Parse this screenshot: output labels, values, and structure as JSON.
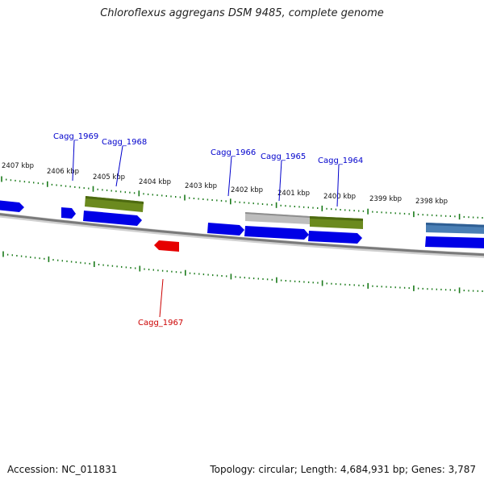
{
  "title": "Chloroflexus aggregans DSM 9485, complete genome",
  "footer": {
    "accession": "Accession: NC_011831",
    "summary": "Topology: circular; Length: 4,684,931 bp; Genes: 3,787"
  },
  "colors": {
    "forward_gene": "#0000e6",
    "reverse_gene": "#e60000",
    "olive_feature": "#6b8a1e",
    "gray_feature": "#b8b8b8",
    "steel_feature": "#4a7fb5",
    "backbone": "#8a8a8a",
    "tick": "#1a7a1a",
    "label_forward": "#0000cc",
    "label_reverse": "#cc0000"
  },
  "scale_labels": [
    "2407 kbp",
    "2406 kbp",
    "2405 kbp",
    "2404 kbp",
    "2403 kbp",
    "2402 kbp",
    "2401 kbp",
    "2400 kbp",
    "2399 kbp",
    "2398 kbp"
  ],
  "gene_labels": [
    {
      "text": "Cagg_1969",
      "strand": "forward"
    },
    {
      "text": "Cagg_1968",
      "strand": "forward"
    },
    {
      "text": "Cagg_1966",
      "strand": "forward"
    },
    {
      "text": "Cagg_1965",
      "strand": "forward"
    },
    {
      "text": "Cagg_1964",
      "strand": "forward"
    },
    {
      "text": "Cagg_1967",
      "strand": "reverse"
    }
  ]
}
